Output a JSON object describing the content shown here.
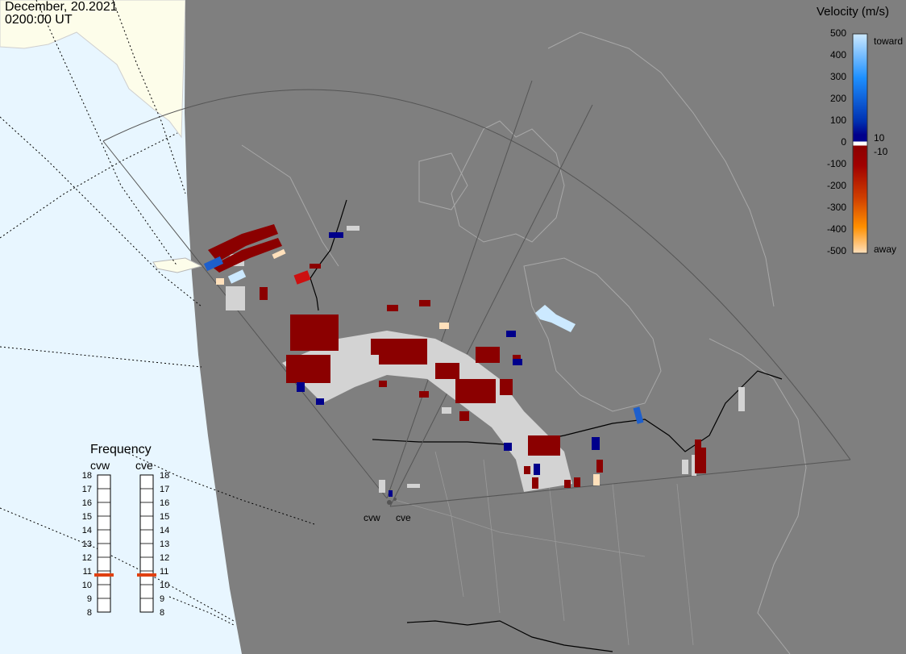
{
  "header": {
    "date": "December, 20.2021",
    "time": "0200:00 UT"
  },
  "colorbar": {
    "title": "Velocity (m/s)",
    "ticks": [
      "500",
      "400",
      "300",
      "200",
      "100",
      "0",
      "-100",
      "-200",
      "-300",
      "-400",
      "-500"
    ],
    "threshold_labels": [
      "10",
      "-10"
    ],
    "toward_label": "toward",
    "away_label": "away",
    "colors": {
      "toward_light": "#cce9ff",
      "toward_mid": "#1e90ff",
      "toward_dark": "#00008b",
      "zero": "#ffffff",
      "away_dark": "#8b0000",
      "away_mid": "#ff6000",
      "away_light": "#ffe0bb",
      "ground_scatter": "#d3d3d3"
    }
  },
  "frequency": {
    "title": "Frequency",
    "radars": [
      {
        "name": "cvw",
        "value": 11
      },
      {
        "name": "cve",
        "value": 11
      }
    ],
    "scale": [
      "18",
      "17",
      "16",
      "15",
      "14",
      "13",
      "12",
      "11",
      "10",
      "9",
      "8"
    ],
    "marker_color": "#e04010"
  },
  "sites": [
    {
      "code": "cvw"
    },
    {
      "code": "cve"
    }
  ],
  "map": {
    "ocean_color": "#e8f6ff",
    "land_color": "#fdfdea",
    "night_color": "#7f7f7f",
    "coast_color": "#a0a0a0"
  }
}
